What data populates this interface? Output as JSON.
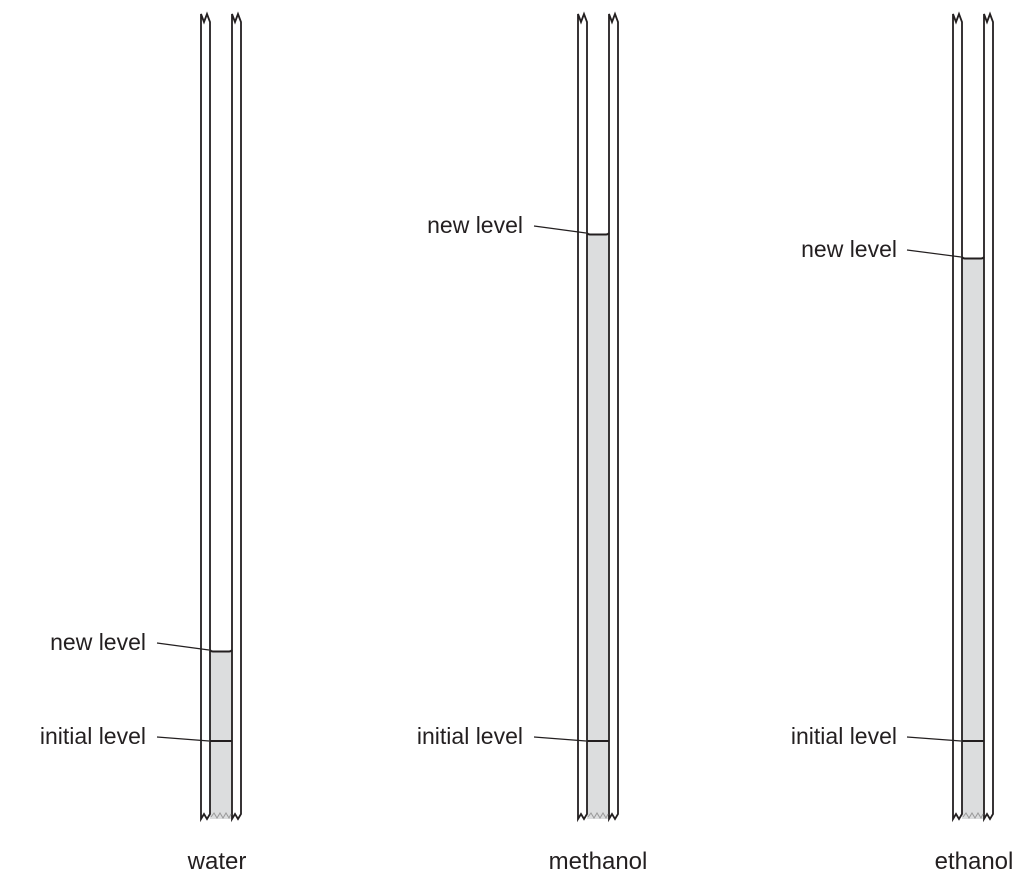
{
  "tubes": [
    {
      "id": "water",
      "caption": "water",
      "new_level_label": "new level",
      "initial_level_label": "initial level"
    },
    {
      "id": "methanol",
      "caption": "methanol",
      "new_level_label": "new level",
      "initial_level_label": "initial level"
    },
    {
      "id": "ethanol",
      "caption": "ethanol",
      "new_level_label": "new level",
      "initial_level_label": "initial level"
    }
  ],
  "colors": {
    "liquid": "#dcddde",
    "ink": "#231f20",
    "background": "#ffffff"
  }
}
